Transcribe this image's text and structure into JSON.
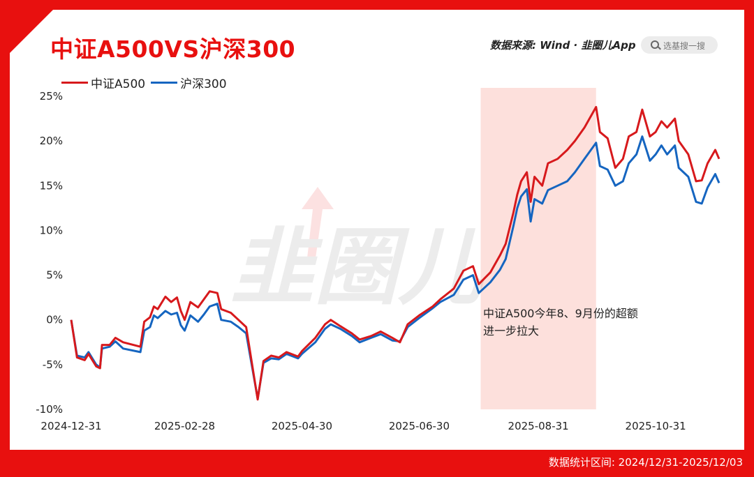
{
  "title": "中证A500VS沪深300",
  "source": "数据来源: Wind · 韭圈儿App",
  "search": {
    "placeholder": "选基搜一搜",
    "icon": "search-icon"
  },
  "footer": "数据统计区间: 2024/12/31-2025/12/03",
  "colors": {
    "brand": "#e8100f",
    "a500": "#d7191c",
    "hs300": "#1565c0",
    "highlight": "#fde0dc"
  },
  "watermark": "韭圈儿",
  "chart_data": {
    "type": "line",
    "xlabel": "",
    "ylabel": "",
    "x_ticks": [
      "2024-12-31",
      "2025-02-28",
      "2025-04-30",
      "2025-06-30",
      "2025-08-31",
      "2025-10-31"
    ],
    "y_ticks": [
      "25%",
      "20%",
      "15%",
      "10%",
      "5%",
      "0%",
      "-5%",
      "-10%"
    ],
    "ylim": [
      -10,
      25
    ],
    "xlim": [
      "2024-12-31",
      "2025-12-03"
    ],
    "grid": false,
    "legend": "top-left",
    "highlight": {
      "from": "2025-08-01",
      "to": "2025-09-30"
    },
    "annotation": {
      "lines": [
        "中证A500今年8、9月份的超额",
        "进一步拉大"
      ]
    },
    "series": [
      {
        "name": "中证A500",
        "color": "#d7191c",
        "points": [
          [
            "2024-12-31",
            0.0
          ],
          [
            "2025-01-03",
            -4.2
          ],
          [
            "2025-01-07",
            -4.5
          ],
          [
            "2025-01-09",
            -3.8
          ],
          [
            "2025-01-13",
            -5.2
          ],
          [
            "2025-01-15",
            -5.4
          ],
          [
            "2025-01-16",
            -2.8
          ],
          [
            "2025-01-20",
            -2.8
          ],
          [
            "2025-01-23",
            -2.0
          ],
          [
            "2025-01-27",
            -2.5
          ],
          [
            "2025-02-05",
            -3.0
          ],
          [
            "2025-02-07",
            -0.2
          ],
          [
            "2025-02-10",
            0.3
          ],
          [
            "2025-02-12",
            1.5
          ],
          [
            "2025-02-14",
            1.2
          ],
          [
            "2025-02-18",
            2.6
          ],
          [
            "2025-02-21",
            2.0
          ],
          [
            "2025-02-24",
            2.5
          ],
          [
            "2025-02-26",
            1.0
          ],
          [
            "2025-02-28",
            0.0
          ],
          [
            "2025-03-03",
            2.0
          ],
          [
            "2025-03-07",
            1.4
          ],
          [
            "2025-03-10",
            2.3
          ],
          [
            "2025-03-13",
            3.2
          ],
          [
            "2025-03-17",
            3.0
          ],
          [
            "2025-03-19",
            1.2
          ],
          [
            "2025-03-24",
            0.8
          ],
          [
            "2025-03-28",
            0.0
          ],
          [
            "2025-04-01",
            -0.8
          ],
          [
            "2025-04-07",
            -8.9
          ],
          [
            "2025-04-10",
            -4.6
          ],
          [
            "2025-04-14",
            -4.0
          ],
          [
            "2025-04-18",
            -4.2
          ],
          [
            "2025-04-22",
            -3.6
          ],
          [
            "2025-04-28",
            -4.1
          ],
          [
            "2025-04-30",
            -3.5
          ],
          [
            "2025-05-07",
            -2.0
          ],
          [
            "2025-05-12",
            -0.5
          ],
          [
            "2025-05-15",
            0.0
          ],
          [
            "2025-05-20",
            -0.7
          ],
          [
            "2025-05-26",
            -1.5
          ],
          [
            "2025-05-30",
            -2.2
          ],
          [
            "2025-06-05",
            -1.8
          ],
          [
            "2025-06-10",
            -1.3
          ],
          [
            "2025-06-16",
            -2.0
          ],
          [
            "2025-06-20",
            -2.5
          ],
          [
            "2025-06-24",
            -0.5
          ],
          [
            "2025-06-30",
            0.5
          ],
          [
            "2025-07-07",
            1.5
          ],
          [
            "2025-07-11",
            2.3
          ],
          [
            "2025-07-18",
            3.5
          ],
          [
            "2025-07-23",
            5.5
          ],
          [
            "2025-07-28",
            6.0
          ],
          [
            "2025-07-31",
            4.0
          ],
          [
            "2025-08-06",
            5.3
          ],
          [
            "2025-08-11",
            7.2
          ],
          [
            "2025-08-14",
            8.5
          ],
          [
            "2025-08-18",
            12.0
          ],
          [
            "2025-08-20",
            14.0
          ],
          [
            "2025-08-22",
            15.5
          ],
          [
            "2025-08-25",
            16.5
          ],
          [
            "2025-08-27",
            13.2
          ],
          [
            "2025-08-29",
            16.0
          ],
          [
            "2025-09-02",
            15.0
          ],
          [
            "2025-09-05",
            17.5
          ],
          [
            "2025-09-10",
            18.0
          ],
          [
            "2025-09-15",
            19.0
          ],
          [
            "2025-09-19",
            20.0
          ],
          [
            "2025-09-24",
            21.5
          ],
          [
            "2025-09-30",
            23.8
          ],
          [
            "2025-10-02",
            21.0
          ],
          [
            "2025-10-06",
            20.3
          ],
          [
            "2025-10-10",
            17.0
          ],
          [
            "2025-10-14",
            18.0
          ],
          [
            "2025-10-17",
            20.5
          ],
          [
            "2025-10-21",
            21.0
          ],
          [
            "2025-10-24",
            23.5
          ],
          [
            "2025-10-28",
            20.5
          ],
          [
            "2025-10-31",
            21.0
          ],
          [
            "2025-11-03",
            22.2
          ],
          [
            "2025-11-06",
            21.5
          ],
          [
            "2025-11-10",
            22.5
          ],
          [
            "2025-11-12",
            20.0
          ],
          [
            "2025-11-17",
            18.5
          ],
          [
            "2025-11-21",
            15.5
          ],
          [
            "2025-11-24",
            15.6
          ],
          [
            "2025-11-27",
            17.5
          ],
          [
            "2025-12-01",
            19.0
          ],
          [
            "2025-12-03",
            18.0
          ]
        ]
      },
      {
        "name": "沪深300",
        "color": "#1565c0",
        "points": [
          [
            "2024-12-31",
            0.0
          ],
          [
            "2025-01-03",
            -4.0
          ],
          [
            "2025-01-07",
            -4.2
          ],
          [
            "2025-01-09",
            -3.6
          ],
          [
            "2025-01-13",
            -5.0
          ],
          [
            "2025-01-15",
            -5.3
          ],
          [
            "2025-01-16",
            -3.2
          ],
          [
            "2025-01-20",
            -3.0
          ],
          [
            "2025-01-23",
            -2.4
          ],
          [
            "2025-01-27",
            -3.2
          ],
          [
            "2025-02-05",
            -3.6
          ],
          [
            "2025-02-07",
            -1.2
          ],
          [
            "2025-02-10",
            -0.8
          ],
          [
            "2025-02-12",
            0.5
          ],
          [
            "2025-02-14",
            0.2
          ],
          [
            "2025-02-18",
            1.0
          ],
          [
            "2025-02-21",
            0.6
          ],
          [
            "2025-02-24",
            0.8
          ],
          [
            "2025-02-26",
            -0.6
          ],
          [
            "2025-02-28",
            -1.2
          ],
          [
            "2025-03-03",
            0.5
          ],
          [
            "2025-03-07",
            -0.2
          ],
          [
            "2025-03-10",
            0.6
          ],
          [
            "2025-03-13",
            1.5
          ],
          [
            "2025-03-17",
            1.8
          ],
          [
            "2025-03-19",
            0.0
          ],
          [
            "2025-03-24",
            -0.2
          ],
          [
            "2025-03-28",
            -0.8
          ],
          [
            "2025-04-01",
            -1.5
          ],
          [
            "2025-04-07",
            -8.8
          ],
          [
            "2025-04-10",
            -4.8
          ],
          [
            "2025-04-14",
            -4.3
          ],
          [
            "2025-04-18",
            -4.4
          ],
          [
            "2025-04-22",
            -3.8
          ],
          [
            "2025-04-28",
            -4.3
          ],
          [
            "2025-04-30",
            -3.8
          ],
          [
            "2025-05-07",
            -2.5
          ],
          [
            "2025-05-12",
            -1.0
          ],
          [
            "2025-05-15",
            -0.5
          ],
          [
            "2025-05-20",
            -1.0
          ],
          [
            "2025-05-26",
            -1.8
          ],
          [
            "2025-05-30",
            -2.5
          ],
          [
            "2025-06-05",
            -2.0
          ],
          [
            "2025-06-10",
            -1.6
          ],
          [
            "2025-06-16",
            -2.3
          ],
          [
            "2025-06-20",
            -2.4
          ],
          [
            "2025-06-24",
            -0.8
          ],
          [
            "2025-06-30",
            0.2
          ],
          [
            "2025-07-07",
            1.3
          ],
          [
            "2025-07-11",
            2.0
          ],
          [
            "2025-07-18",
            2.8
          ],
          [
            "2025-07-23",
            4.5
          ],
          [
            "2025-07-28",
            5.0
          ],
          [
            "2025-07-31",
            3.0
          ],
          [
            "2025-08-06",
            4.2
          ],
          [
            "2025-08-11",
            5.6
          ],
          [
            "2025-08-14",
            6.8
          ],
          [
            "2025-08-18",
            10.5
          ],
          [
            "2025-08-20",
            12.5
          ],
          [
            "2025-08-22",
            13.8
          ],
          [
            "2025-08-25",
            14.6
          ],
          [
            "2025-08-27",
            11.0
          ],
          [
            "2025-08-29",
            13.5
          ],
          [
            "2025-09-02",
            13.0
          ],
          [
            "2025-09-05",
            14.5
          ],
          [
            "2025-09-10",
            15.0
          ],
          [
            "2025-09-15",
            15.5
          ],
          [
            "2025-09-19",
            16.5
          ],
          [
            "2025-09-24",
            18.0
          ],
          [
            "2025-09-30",
            19.8
          ],
          [
            "2025-10-02",
            17.2
          ],
          [
            "2025-10-06",
            16.8
          ],
          [
            "2025-10-10",
            15.0
          ],
          [
            "2025-10-14",
            15.5
          ],
          [
            "2025-10-17",
            17.5
          ],
          [
            "2025-10-21",
            18.5
          ],
          [
            "2025-10-24",
            20.5
          ],
          [
            "2025-10-28",
            17.8
          ],
          [
            "2025-10-31",
            18.5
          ],
          [
            "2025-11-03",
            19.5
          ],
          [
            "2025-11-06",
            18.5
          ],
          [
            "2025-11-10",
            19.5
          ],
          [
            "2025-11-12",
            17.0
          ],
          [
            "2025-11-17",
            16.0
          ],
          [
            "2025-11-21",
            13.2
          ],
          [
            "2025-11-24",
            13.0
          ],
          [
            "2025-11-27",
            14.8
          ],
          [
            "2025-12-01",
            16.3
          ],
          [
            "2025-12-03",
            15.3
          ]
        ]
      }
    ]
  }
}
